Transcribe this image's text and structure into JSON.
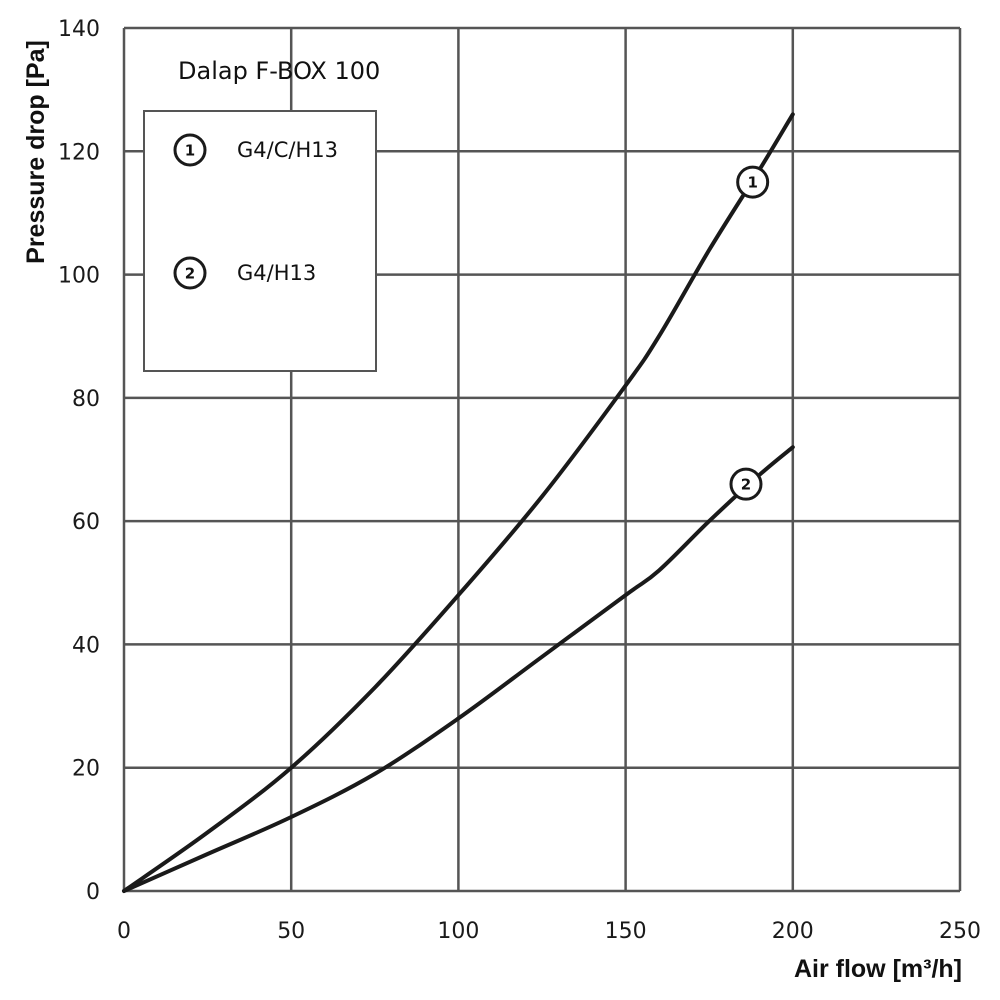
{
  "chart_data": {
    "type": "line",
    "title": "Dalap F-BOX 100",
    "xlabel": "Air flow [m³/h]",
    "ylabel": "Pressure drop [Pa]",
    "xlim": [
      0,
      250
    ],
    "ylim": [
      0,
      140
    ],
    "xticks": [
      "0",
      "50",
      "100",
      "150",
      "200",
      "250"
    ],
    "yticks": [
      "0",
      "20",
      "40",
      "60",
      "80",
      "100",
      "120",
      "140"
    ],
    "grid": true,
    "legend_position": "top-left",
    "line_color": "#1a1a1a",
    "grid_color": "#555555",
    "series": [
      {
        "name": "G4/C/H13",
        "marker": "1",
        "label_x": 188,
        "label_y": 115,
        "x": [
          0,
          25,
          50,
          75,
          100,
          125,
          150,
          160,
          175,
          190,
          200
        ],
        "y": [
          0,
          9.5,
          20,
          33,
          48,
          64,
          82,
          90,
          104,
          117,
          126
        ]
      },
      {
        "name": "G4/H13",
        "marker": "2",
        "label_x": 186,
        "label_y": 66,
        "x": [
          0,
          25,
          50,
          75,
          100,
          125,
          150,
          160,
          175,
          190,
          200
        ],
        "y": [
          0,
          6,
          12,
          19,
          28,
          38,
          48,
          52,
          60,
          67.5,
          72
        ]
      }
    ]
  }
}
